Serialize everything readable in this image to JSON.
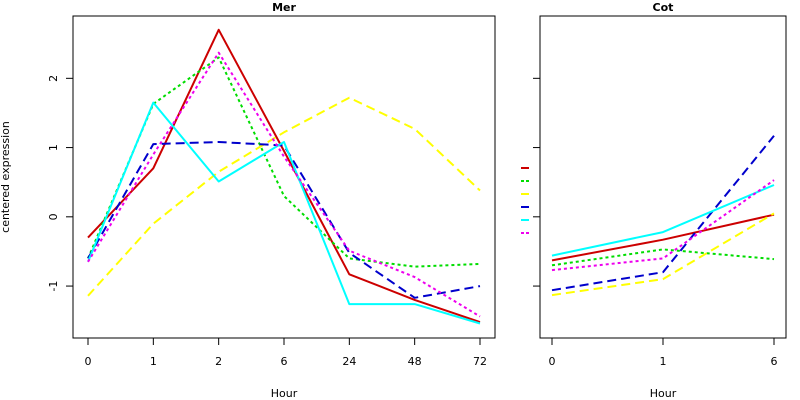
{
  "chart_data": [
    {
      "type": "line",
      "title": "Mer",
      "xlabel": "Hour",
      "ylabel": "centered expression",
      "categories": [
        "0",
        "1",
        "2",
        "6",
        "24",
        "48",
        "72"
      ],
      "ylim": [
        -1.75,
        2.9
      ],
      "yticks": [
        -1,
        0,
        1,
        2
      ],
      "grid": false,
      "series": [
        {
          "color": "#cc0000",
          "dash": "solid",
          "values": [
            -0.3,
            0.7,
            2.7,
            0.95,
            -0.83,
            -1.2,
            -1.52
          ]
        },
        {
          "color": "#00dd00",
          "dash": "dotted",
          "values": [
            -0.6,
            1.63,
            2.3,
            0.3,
            -0.6,
            -0.72,
            -0.68
          ]
        },
        {
          "color": "#ffff00",
          "dash": "dashed",
          "values": [
            -1.14,
            -0.1,
            0.65,
            1.22,
            1.72,
            1.27,
            0.38
          ]
        },
        {
          "color": "#0000cc",
          "dash": "dashed",
          "values": [
            -0.6,
            1.05,
            1.08,
            1.03,
            -0.52,
            -1.17,
            -1.0
          ]
        },
        {
          "color": "#00ffff",
          "dash": "solid",
          "values": [
            -0.65,
            1.65,
            0.51,
            1.08,
            -1.26,
            -1.26,
            -1.54
          ]
        },
        {
          "color": "#ee00ee",
          "dash": "dotted",
          "values": [
            -0.65,
            0.9,
            2.37,
            0.87,
            -0.49,
            -0.87,
            -1.44
          ]
        }
      ]
    },
    {
      "type": "line",
      "title": "Cot",
      "xlabel": "Hour",
      "ylabel": "",
      "categories": [
        "0",
        "1",
        "6"
      ],
      "ylim": [
        -1.75,
        2.9
      ],
      "yticks": [
        -1,
        0,
        1,
        2
      ],
      "grid": false,
      "series": [
        {
          "color": "#cc0000",
          "dash": "solid",
          "values": [
            -0.63,
            -0.33,
            0.03
          ]
        },
        {
          "color": "#00dd00",
          "dash": "dotted",
          "values": [
            -0.7,
            -0.47,
            -0.61
          ]
        },
        {
          "color": "#ffff00",
          "dash": "dashed",
          "values": [
            -1.13,
            -0.9,
            0.05
          ]
        },
        {
          "color": "#0000cc",
          "dash": "dashed",
          "values": [
            -1.06,
            -0.8,
            1.17
          ]
        },
        {
          "color": "#00ffff",
          "dash": "solid",
          "values": [
            -0.56,
            -0.22,
            0.46
          ]
        },
        {
          "color": "#ee00ee",
          "dash": "dotted",
          "values": [
            -0.77,
            -0.6,
            0.53
          ]
        }
      ]
    }
  ],
  "legend": {
    "placement": "between panels",
    "colors": [
      "#cc0000",
      "#00dd00",
      "#ffff00",
      "#0000cc",
      "#00ffff",
      "#ee00ee"
    ],
    "dashes": [
      "solid",
      "dotted",
      "dashed",
      "dashed",
      "solid",
      "dotted"
    ]
  }
}
